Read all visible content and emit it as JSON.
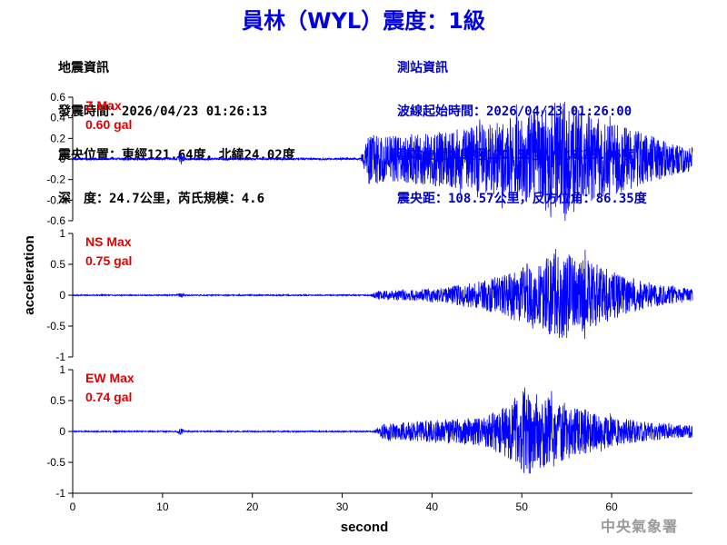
{
  "header": {
    "title": "員林（WYL）震度：1級"
  },
  "quake_info": {
    "heading": "地震資訊",
    "time": "發震時間：2026/04/23 01:26:13",
    "epicenter": "震央位置：東經121.64度，北緯24.02度",
    "depth_magnitude": "深　度：24.7公里，芮氏規模：4.6"
  },
  "station_info": {
    "heading": "測站資訊",
    "wave_start": "波線起始時間：2026/04/23 01:26:00",
    "location": "測站位置：東經120.58度，北緯23.96度",
    "distance": "震央距：108.57公里，反方位角：86.35度"
  },
  "footer": {
    "agency": "中央氣象署"
  },
  "colors": {
    "title": "#0000e0",
    "trace": "#0000ff",
    "label": "#e00000",
    "station_text": "#0000c8"
  },
  "chart_data": {
    "type": "line",
    "xlabel": "second",
    "ylabel": "acceleration",
    "xlim": [
      0,
      69
    ],
    "xticks": [
      "0",
      "10",
      "20",
      "30",
      "40",
      "50",
      "60"
    ],
    "panels": [
      {
        "name": "Z",
        "label_line1": "Z Max",
        "label_line2": "0.60 gal",
        "max_gal": 0.6,
        "ylim": [
          -0.6,
          0.6
        ],
        "yticks": [
          "0.6",
          "0.4",
          "0.2",
          "0",
          "-0.2",
          "-0.4",
          "-0.6"
        ],
        "ytick_values": [
          0.6,
          0.4,
          0.2,
          0,
          -0.2,
          -0.4,
          -0.6
        ],
        "p_arrival_s": 32.3,
        "noise": 0.01,
        "envelope": [
          [
            0,
            0.01
          ],
          [
            11.5,
            0.01
          ],
          [
            12,
            0.06
          ],
          [
            12.6,
            0.01
          ],
          [
            32,
            0.01
          ],
          [
            33,
            0.25
          ],
          [
            35,
            0.22
          ],
          [
            40,
            0.26
          ],
          [
            44,
            0.3
          ],
          [
            48,
            0.4
          ],
          [
            52,
            0.48
          ],
          [
            54.5,
            0.58
          ],
          [
            58,
            0.42
          ],
          [
            62,
            0.3
          ],
          [
            66,
            0.18
          ],
          [
            69,
            0.12
          ]
        ]
      },
      {
        "name": "NS",
        "label_line1": "NS Max",
        "label_line2": "0.75 gal",
        "max_gal": 0.75,
        "ylim": [
          -1,
          1
        ],
        "yticks": [
          "1",
          "0.5",
          "0",
          "-0.5",
          "-1"
        ],
        "ytick_values": [
          1,
          0.5,
          0,
          -0.5,
          -1
        ],
        "p_arrival_s": 33,
        "noise": 0.01,
        "envelope": [
          [
            0,
            0.01
          ],
          [
            11.5,
            0.01
          ],
          [
            12,
            0.04
          ],
          [
            12.6,
            0.01
          ],
          [
            33,
            0.01
          ],
          [
            34,
            0.07
          ],
          [
            38,
            0.09
          ],
          [
            42,
            0.14
          ],
          [
            46,
            0.25
          ],
          [
            49,
            0.4
          ],
          [
            52,
            0.55
          ],
          [
            54.5,
            0.75
          ],
          [
            57,
            0.6
          ],
          [
            60,
            0.4
          ],
          [
            64,
            0.2
          ],
          [
            69,
            0.1
          ]
        ]
      },
      {
        "name": "EW",
        "label_line1": "EW Max",
        "label_line2": "0.74 gal",
        "max_gal": 0.74,
        "ylim": [
          -1,
          1
        ],
        "yticks": [
          "1",
          "0.5",
          "0",
          "-0.5",
          "-1"
        ],
        "ytick_values": [
          1,
          0.5,
          0,
          -0.5,
          -1
        ],
        "p_arrival_s": 33.5,
        "noise": 0.01,
        "envelope": [
          [
            0,
            0.01
          ],
          [
            11.5,
            0.01
          ],
          [
            12,
            0.06
          ],
          [
            12.6,
            0.01
          ],
          [
            33.5,
            0.01
          ],
          [
            34.5,
            0.12
          ],
          [
            38,
            0.16
          ],
          [
            42,
            0.2
          ],
          [
            46,
            0.24
          ],
          [
            48.5,
            0.45
          ],
          [
            50.5,
            0.74
          ],
          [
            53,
            0.55
          ],
          [
            56,
            0.4
          ],
          [
            60,
            0.25
          ],
          [
            64,
            0.15
          ],
          [
            69,
            0.1
          ]
        ]
      }
    ]
  }
}
